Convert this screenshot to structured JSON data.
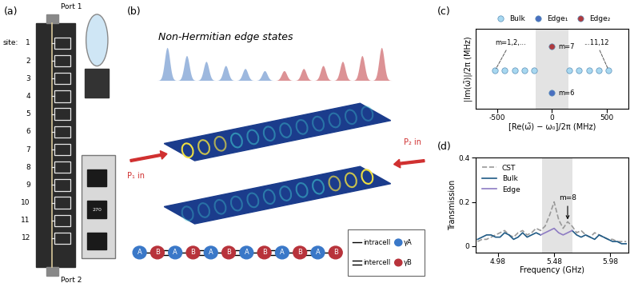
{
  "panels": {
    "a": {
      "label": "(a)",
      "ports": [
        "Port 1",
        "Port 2"
      ],
      "site_prefix": "site:",
      "sites": [
        "1",
        "2",
        "3",
        "4",
        "5",
        "6",
        "7",
        "8",
        "9",
        "10",
        "11",
        "12"
      ],
      "resistor_label": "270"
    },
    "b": {
      "label": "(b)",
      "title": "Non-Hermitian edge states",
      "inputs": [
        "P₁ in",
        "P₂ in"
      ],
      "chain": [
        "A",
        "B",
        "A",
        "B",
        "A",
        "B",
        "A",
        "B",
        "A",
        "B",
        "A",
        "B"
      ],
      "bond_labels": [
        "intracell",
        "intercell"
      ],
      "gain_labels": [
        "γA",
        "γB"
      ]
    }
  },
  "chart_data": [
    {
      "type": "scatter",
      "panel_label": "(c)",
      "xlabel": "[Re(ω̃) − ω₀]/2π (MHz)",
      "ylabel": "|Im(ω̃)|/2π (MHz)",
      "xlim": [
        -700,
        700
      ],
      "ylim": [
        30,
        80
      ],
      "xticks": [
        -500,
        0,
        500
      ],
      "tick_labels": "x",
      "shaded_range": [
        -150,
        150
      ],
      "legend": "top",
      "series": [
        {
          "name": "Bulk",
          "color": "#a8d8f0",
          "x": [
            -520,
            -430,
            -340,
            -250,
            -160,
            160,
            250,
            340,
            430,
            520
          ],
          "values": [
            54,
            54,
            54,
            54,
            54,
            54,
            54,
            54,
            54,
            54
          ]
        },
        {
          "name": "Edge₁",
          "color": "#4a6fc0",
          "x": [
            0
          ],
          "values": [
            40
          ]
        },
        {
          "name": "Edge₂",
          "color": "#b03a3e",
          "x": [
            0
          ],
          "values": [
            69
          ]
        }
      ],
      "annotations": [
        {
          "text": "m=1,2,...",
          "series": "Bulk",
          "point_index": 0
        },
        {
          "text": "...11,12",
          "series": "Bulk",
          "point_index": 9
        },
        {
          "text": "m=7",
          "series": "Edge₂",
          "point_index": 0
        },
        {
          "text": "m=6",
          "series": "Edge₁",
          "point_index": 0
        }
      ]
    },
    {
      "type": "line",
      "panel_label": "(d)",
      "xlabel": "Frequency (GHz)",
      "ylabel": "Transmission",
      "xlim": [
        4.78,
        6.14
      ],
      "ylim": [
        -0.03,
        0.4
      ],
      "xticks": [
        4.98,
        5.48,
        5.98
      ],
      "yticks": [
        0,
        0.2,
        0.4
      ],
      "shaded_range": [
        5.37,
        5.64
      ],
      "legend": "upper left",
      "x": [
        4.8,
        4.84,
        4.88,
        4.92,
        4.96,
        5.0,
        5.04,
        5.08,
        5.12,
        5.16,
        5.2,
        5.24,
        5.28,
        5.32,
        5.36,
        5.4,
        5.44,
        5.48,
        5.52,
        5.56,
        5.6,
        5.64,
        5.68,
        5.72,
        5.76,
        5.8,
        5.84,
        5.88,
        5.92,
        5.96,
        6.0,
        6.04,
        6.08,
        6.12
      ],
      "series": [
        {
          "name": "CST",
          "color": "#999999",
          "line_style": "dashed",
          "values": [
            0.02,
            0.03,
            0.03,
            0.04,
            0.05,
            0.06,
            0.07,
            0.05,
            0.04,
            0.06,
            0.07,
            0.05,
            0.06,
            0.08,
            0.07,
            0.09,
            0.14,
            0.2,
            0.12,
            0.08,
            0.11,
            0.09,
            0.06,
            0.07,
            0.05,
            0.04,
            0.06,
            0.05,
            0.04,
            0.03,
            0.03,
            0.02,
            0.02,
            0.02
          ]
        },
        {
          "name": "Bulk",
          "color": "#1f5a85",
          "line_style": "solid",
          "values": [
            0.03,
            0.04,
            0.05,
            0.05,
            0.04,
            0.04,
            0.06,
            0.05,
            0.03,
            0.04,
            0.06,
            0.04,
            0.05,
            0.06,
            0.05,
            null,
            null,
            null,
            null,
            null,
            null,
            0.07,
            0.05,
            0.04,
            0.05,
            0.04,
            0.03,
            0.05,
            0.04,
            0.03,
            0.02,
            0.02,
            0.01,
            0.01
          ]
        },
        {
          "name": "Edge",
          "color": "#8e7cc3",
          "line_style": "solid",
          "values": [
            null,
            null,
            null,
            null,
            null,
            null,
            null,
            null,
            null,
            null,
            null,
            null,
            null,
            null,
            0.05,
            0.06,
            0.07,
            0.08,
            0.06,
            0.05,
            0.06,
            0.07,
            null,
            null,
            null,
            null,
            null,
            null,
            null,
            null,
            null,
            null,
            null,
            null
          ]
        }
      ],
      "annotations": [
        {
          "text": "m=8",
          "series": "CST",
          "point_index": 20
        }
      ]
    }
  ]
}
